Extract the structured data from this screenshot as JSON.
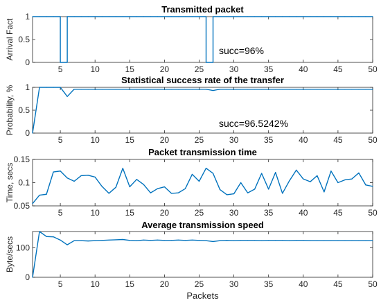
{
  "chart_data": [
    {
      "type": "line",
      "title": "Transmitted packet",
      "xlabel": "",
      "ylabel": "Arrival Fact",
      "xlim": [
        1,
        50
      ],
      "ylim": [
        0,
        1
      ],
      "xticks": [
        5,
        10,
        15,
        20,
        25,
        30,
        35,
        40,
        45,
        50
      ],
      "yticks": [
        0,
        0.5,
        1
      ],
      "annotation": "succ=96%",
      "step": true,
      "color": "#0072BD",
      "x": [
        1,
        2,
        3,
        4,
        5,
        6,
        7,
        8,
        9,
        10,
        11,
        12,
        13,
        14,
        15,
        16,
        17,
        18,
        19,
        20,
        21,
        22,
        23,
        24,
        25,
        26,
        27,
        28,
        29,
        30,
        31,
        32,
        33,
        34,
        35,
        36,
        37,
        38,
        39,
        40,
        41,
        42,
        43,
        44,
        45,
        46,
        47,
        48,
        49,
        50
      ],
      "y": [
        1,
        1,
        1,
        1,
        0,
        1,
        1,
        1,
        1,
        1,
        1,
        1,
        1,
        1,
        1,
        1,
        1,
        1,
        1,
        1,
        1,
        1,
        1,
        1,
        1,
        0,
        1,
        1,
        1,
        1,
        1,
        1,
        1,
        1,
        1,
        1,
        1,
        1,
        1,
        1,
        1,
        1,
        1,
        1,
        1,
        1,
        1,
        1,
        1,
        1
      ]
    },
    {
      "type": "line",
      "title": "Statistical success rate of the transfer",
      "xlabel": "",
      "ylabel": "Probability, %",
      "xlim": [
        1,
        50
      ],
      "ylim": [
        0,
        1
      ],
      "xticks": [
        5,
        10,
        15,
        20,
        25,
        30,
        35,
        40,
        45,
        50
      ],
      "yticks": [
        0,
        0.5,
        1
      ],
      "annotation": "succ=96.5242%",
      "color": "#0072BD",
      "x": [
        1,
        2,
        3,
        4,
        5,
        6,
        7,
        8,
        9,
        10,
        11,
        12,
        13,
        14,
        15,
        16,
        17,
        18,
        19,
        20,
        21,
        22,
        23,
        24,
        25,
        26,
        27,
        28,
        29,
        30,
        31,
        32,
        33,
        34,
        35,
        36,
        37,
        38,
        39,
        40,
        41,
        42,
        43,
        44,
        45,
        46,
        47,
        48,
        49,
        50
      ],
      "y": [
        0,
        1,
        1,
        1,
        1,
        0.8,
        0.96,
        0.96,
        0.96,
        0.96,
        0.96,
        0.96,
        0.96,
        0.96,
        0.96,
        0.96,
        0.96,
        0.96,
        0.96,
        0.96,
        0.96,
        0.96,
        0.96,
        0.96,
        0.96,
        0.96,
        0.93,
        0.96,
        0.96,
        0.96,
        0.96,
        0.96,
        0.96,
        0.96,
        0.96,
        0.96,
        0.96,
        0.96,
        0.96,
        0.96,
        0.96,
        0.96,
        0.96,
        0.96,
        0.96,
        0.96,
        0.96,
        0.96,
        0.96,
        0.96
      ]
    },
    {
      "type": "line",
      "title": "Packet transmission time",
      "xlabel": "",
      "ylabel": "Time, secs",
      "xlim": [
        1,
        50
      ],
      "ylim": [
        0.05,
        0.15
      ],
      "xticks": [
        5,
        10,
        15,
        20,
        25,
        30,
        35,
        40,
        45,
        50
      ],
      "yticks": [
        0.05,
        0.1,
        0.15
      ],
      "ytick_labels": [
        "0.05",
        "0.1",
        "0.15"
      ],
      "color": "#0072BD",
      "x": [
        1,
        2,
        3,
        4,
        5,
        6,
        7,
        8,
        9,
        10,
        11,
        12,
        13,
        14,
        15,
        16,
        17,
        18,
        19,
        20,
        21,
        22,
        23,
        24,
        25,
        26,
        27,
        28,
        29,
        30,
        31,
        32,
        33,
        34,
        35,
        36,
        37,
        38,
        39,
        40,
        41,
        42,
        43,
        44,
        45,
        46,
        47,
        48,
        49,
        50
      ],
      "y": [
        0.055,
        0.073,
        0.075,
        0.123,
        0.125,
        0.11,
        0.103,
        0.115,
        0.116,
        0.112,
        0.092,
        0.077,
        0.09,
        0.131,
        0.091,
        0.107,
        0.096,
        0.078,
        0.087,
        0.091,
        0.077,
        0.078,
        0.087,
        0.118,
        0.103,
        0.131,
        0.12,
        0.085,
        0.074,
        0.076,
        0.1,
        0.078,
        0.086,
        0.12,
        0.086,
        0.122,
        0.077,
        0.104,
        0.127,
        0.108,
        0.102,
        0.115,
        0.08,
        0.125,
        0.1,
        0.106,
        0.108,
        0.121,
        0.095,
        0.092
      ]
    },
    {
      "type": "line",
      "title": "Average transmission speed",
      "xlabel": "Packets",
      "ylabel": "Byte/secs",
      "xlim": [
        1,
        50
      ],
      "ylim": [
        0,
        155
      ],
      "xticks": [
        5,
        10,
        15,
        20,
        25,
        30,
        35,
        40,
        45,
        50
      ],
      "yticks": [
        0,
        100
      ],
      "color": "#0072BD",
      "x": [
        1,
        2,
        3,
        4,
        5,
        6,
        7,
        8,
        9,
        10,
        11,
        12,
        13,
        14,
        15,
        16,
        17,
        18,
        19,
        20,
        21,
        22,
        23,
        24,
        25,
        26,
        27,
        28,
        29,
        30,
        31,
        32,
        33,
        34,
        35,
        36,
        37,
        38,
        39,
        40,
        41,
        42,
        43,
        44,
        45,
        46,
        47,
        48,
        49,
        50
      ],
      "y": [
        0,
        155,
        138,
        137,
        126,
        110,
        124,
        124,
        123,
        124,
        125,
        126,
        127,
        128,
        125,
        124,
        126,
        125,
        126,
        125,
        125,
        126,
        125,
        126,
        125,
        124,
        121,
        124,
        125,
        124,
        125,
        125,
        125,
        124,
        125,
        125,
        125,
        124,
        125,
        125,
        124,
        124,
        124,
        124,
        124,
        124,
        124,
        124,
        124,
        124
      ]
    }
  ]
}
